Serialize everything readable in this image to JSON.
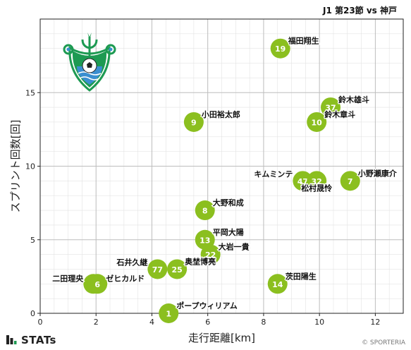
{
  "header": {
    "title": "J1 第23節 vs 神戸"
  },
  "footer": {
    "brand": "STATs",
    "copyright": "© SPORTERIA"
  },
  "colors": {
    "point": "#8bbf1f",
    "point_label": "#ffffff",
    "grid_major": "#bdbdbd",
    "grid_minor": "#e3e3e3",
    "badge_green": "#1d9a52",
    "badge_blue": "#3a8fd0"
  },
  "chart_data": {
    "type": "scatter",
    "xlabel": "走行距離[km]",
    "ylabel": "スプリント回数[回]",
    "xlim": [
      0,
      13
    ],
    "ylim": [
      0,
      20
    ],
    "xticks": [
      0,
      2,
      4,
      6,
      8,
      10,
      12
    ],
    "yticks": [
      0,
      5,
      10,
      15
    ],
    "grid": true,
    "points": [
      {
        "number": "19",
        "name": "福田翔生",
        "x": 8.6,
        "y": 18
      },
      {
        "number": "37",
        "name": "鈴木雄斗",
        "x": 10.4,
        "y": 14
      },
      {
        "number": "10",
        "name": "鈴木章斗",
        "x": 9.9,
        "y": 13
      },
      {
        "number": "9",
        "name": "小田裕太郎",
        "x": 5.5,
        "y": 13
      },
      {
        "number": "47",
        "name": "キムミンテ",
        "x": 9.4,
        "y": 9
      },
      {
        "number": "32",
        "name": "松村晟怜",
        "x": 9.9,
        "y": 9
      },
      {
        "number": "7",
        "name": "小野瀬康介",
        "x": 11.1,
        "y": 9
      },
      {
        "number": "8",
        "name": "大野和成",
        "x": 5.9,
        "y": 7
      },
      {
        "number": "13",
        "name": "平岡大陽",
        "x": 5.9,
        "y": 5
      },
      {
        "number": "22",
        "name": "大岩一貴",
        "x": 6.1,
        "y": 4
      },
      {
        "number": "77",
        "name": "石井久継",
        "x": 4.2,
        "y": 3
      },
      {
        "number": "25",
        "name": "奥埜博亮",
        "x": 4.9,
        "y": 3
      },
      {
        "number": "72",
        "name": "二田理央",
        "x": 1.9,
        "y": 2
      },
      {
        "number": "6",
        "name": "ゼヒカルド",
        "x": 2.05,
        "y": 2
      },
      {
        "number": "14",
        "name": "茨田陽生",
        "x": 8.5,
        "y": 2
      },
      {
        "number": "1",
        "name": "ポープウィリアム",
        "x": 4.6,
        "y": 0
      }
    ]
  }
}
